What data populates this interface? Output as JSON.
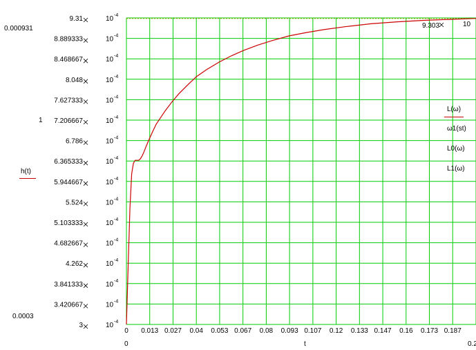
{
  "chart_data": {
    "type": "line",
    "title": "",
    "xlabel": "t",
    "ylabel": "h(t)",
    "xlim": [
      0,
      0.2
    ],
    "ylim": [
      0.0003,
      0.000931
    ],
    "x_tick_labels": [
      "0",
      "0.013",
      "0.027",
      "0.04",
      "0.053",
      "0.067",
      "0.08",
      "0.093",
      "0.107",
      "0.12",
      "0.133",
      "0.147",
      "0.16",
      "0.173",
      "0.187"
    ],
    "x_range_labels": {
      "min": "0",
      "max": "0.2"
    },
    "y_tick_labels": [
      {
        "mantissa": "9.31",
        "exp": "-4"
      },
      {
        "mantissa": "8.889333",
        "exp": "-4"
      },
      {
        "mantissa": "8.468667",
        "exp": "-4"
      },
      {
        "mantissa": "8.048",
        "exp": "-4"
      },
      {
        "mantissa": "7.627333",
        "exp": "-4"
      },
      {
        "mantissa": "7.206667",
        "exp": "-4"
      },
      {
        "mantissa": "6.786",
        "exp": "-4"
      },
      {
        "mantissa": "6.365333",
        "exp": "-4"
      },
      {
        "mantissa": "5.944667",
        "exp": "-4"
      },
      {
        "mantissa": "5.524",
        "exp": "-4"
      },
      {
        "mantissa": "5.103333",
        "exp": "-4"
      },
      {
        "mantissa": "4.682667",
        "exp": "-4"
      },
      {
        "mantissa": "4.262",
        "exp": "-4"
      },
      {
        "mantissa": "3.841333",
        "exp": "-4"
      },
      {
        "mantissa": "3.420667",
        "exp": "-4"
      },
      {
        "mantissa": "3",
        "exp": "-4"
      }
    ],
    "y_range_labels": {
      "max": "0.000931",
      "min": "0.0003"
    },
    "left_marker": "1",
    "reference_label": {
      "mantissa": "9.303",
      "exp": "-4"
    },
    "right_partial_label": "10",
    "legend_right": [
      "L(ω)",
      "ω1(st)",
      "L0(ω)",
      "L1(ω)"
    ],
    "grid": true,
    "line_color": "#cc0000",
    "grid_color": "#00cc00",
    "reference_line_color": "#999900",
    "series": [
      {
        "name": "h(t)",
        "x": [
          0.0,
          0.001,
          0.002,
          0.003,
          0.004,
          0.005,
          0.006,
          0.007,
          0.008,
          0.009,
          0.01,
          0.011,
          0.012,
          0.013,
          0.015,
          0.017,
          0.019,
          0.022,
          0.026,
          0.03,
          0.035,
          0.04,
          0.046,
          0.053,
          0.06,
          0.067,
          0.075,
          0.083,
          0.093,
          0.103,
          0.113,
          0.125,
          0.14,
          0.155,
          0.17,
          0.185,
          0.2
        ],
        "y": [
          0.0003,
          0.00042,
          0.00054,
          0.00061,
          0.000632,
          0.000638,
          0.000638,
          0.000638,
          0.000641,
          0.000647,
          0.000655,
          0.000664,
          0.000673,
          0.000681,
          0.000697,
          0.000712,
          0.000723,
          0.000739,
          0.000758,
          0.000775,
          0.000793,
          0.00081,
          0.000825,
          0.00084,
          0.000853,
          0.000864,
          0.000875,
          0.000884,
          0.000894,
          0.000901,
          0.000907,
          0.000913,
          0.000919,
          0.000923,
          0.000926,
          0.000928,
          0.00093
        ]
      }
    ],
    "reference_series": {
      "name": "",
      "y": 0.00093
    }
  }
}
